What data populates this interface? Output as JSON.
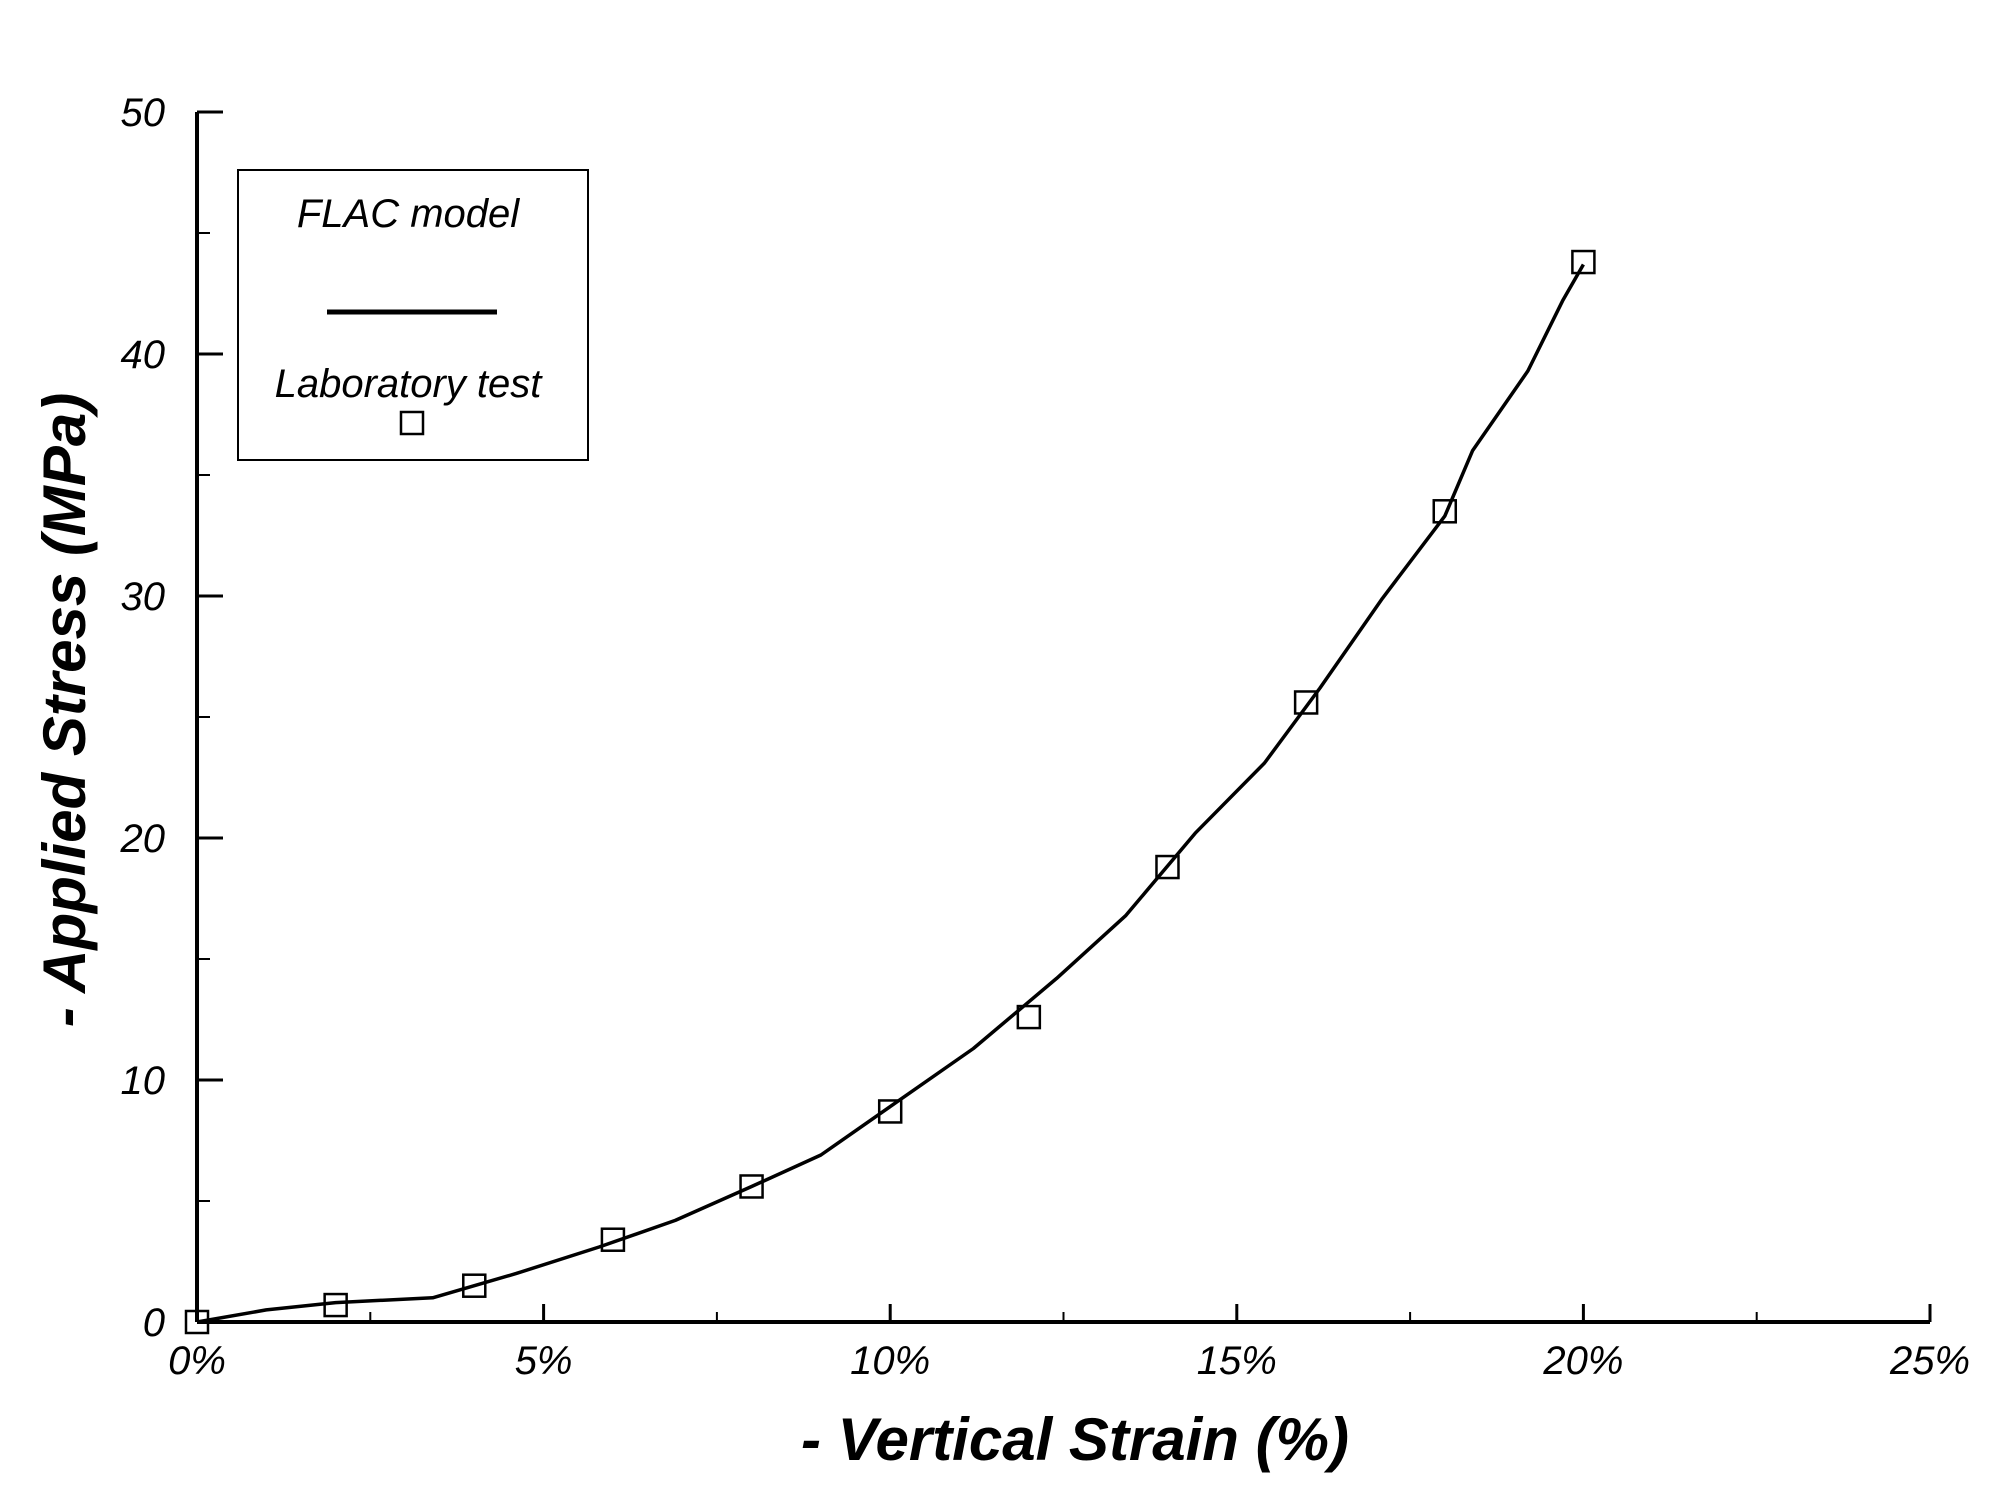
{
  "chart_data": {
    "type": "line",
    "xlabel": "- Vertical Strain (%)",
    "ylabel": "- Applied Stress (MPa)",
    "xlim": [
      0,
      25
    ],
    "ylim": [
      0,
      50
    ],
    "x_ticks": [
      0,
      5,
      10,
      15,
      20,
      25
    ],
    "x_tick_labels": [
      "0%",
      "5%",
      "10%",
      "15%",
      "20%",
      "25%"
    ],
    "x_minor_ticks": [
      2.5,
      7.5,
      12.5,
      17.5,
      22.5
    ],
    "y_ticks": [
      0,
      10,
      20,
      30,
      40,
      50
    ],
    "y_tick_labels": [
      "0",
      "10",
      "20",
      "30",
      "40",
      "50"
    ],
    "y_minor_ticks": [
      5,
      15,
      25,
      35,
      45
    ],
    "grid": false,
    "legend_placement": "top-left",
    "series": [
      {
        "name": "FLAC model",
        "style": "solid line",
        "color": "#000000",
        "x": [
          0,
          1.0,
          2.0,
          3.4,
          4.6,
          5.8,
          6.9,
          8.0,
          9.0,
          10.0,
          11.2,
          12.4,
          13.4,
          14.4,
          15.4,
          16.2,
          17.1,
          18.0,
          18.4,
          19.2,
          19.7,
          20.0
        ],
        "y": [
          0,
          0.5,
          0.8,
          1.0,
          2.0,
          3.1,
          4.2,
          5.6,
          6.9,
          8.9,
          11.3,
          14.2,
          16.8,
          20.2,
          23.1,
          26.2,
          29.9,
          33.3,
          36.0,
          39.3,
          42.2,
          43.7
        ]
      },
      {
        "name": "Laboratory test",
        "style": "hollow square markers",
        "color": "#000000",
        "x": [
          0,
          2,
          4,
          6,
          8,
          10,
          12,
          14,
          16,
          18,
          20
        ],
        "y": [
          0,
          0.7,
          1.5,
          3.4,
          5.6,
          8.7,
          12.6,
          18.8,
          25.6,
          33.5,
          43.8
        ]
      }
    ]
  }
}
